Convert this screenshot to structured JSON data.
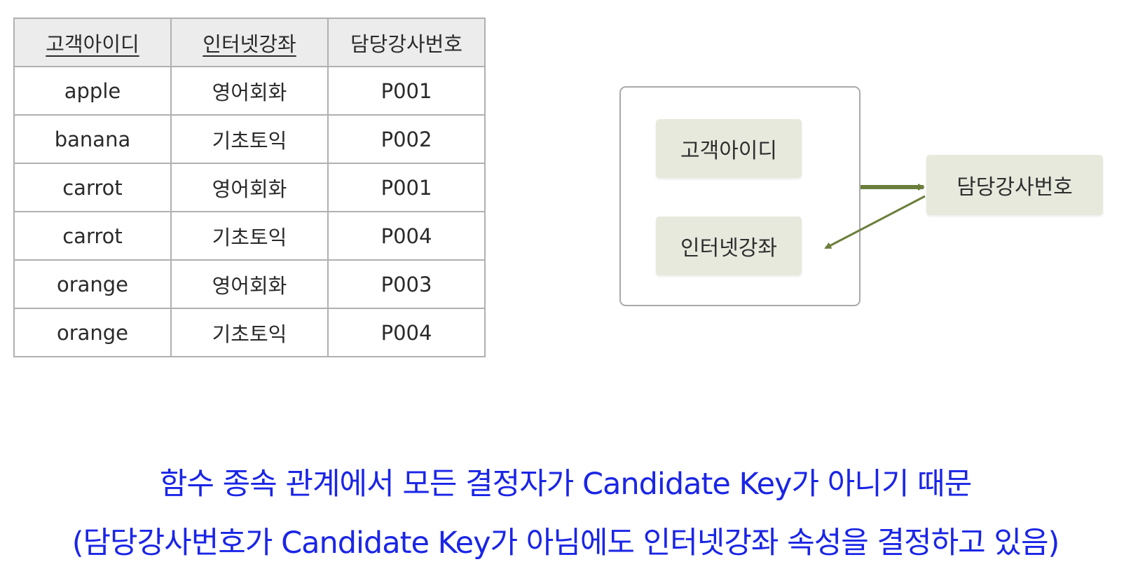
{
  "table": {
    "headers": [
      {
        "label": "고객아이디",
        "underline": true
      },
      {
        "label": "인터넷강좌",
        "underline": true
      },
      {
        "label": "담당강사번호",
        "underline": false
      }
    ],
    "rows": [
      [
        "apple",
        "영어회화",
        "P001"
      ],
      [
        "banana",
        "기초토익",
        "P002"
      ],
      [
        "carrot",
        "영어회화",
        "P001"
      ],
      [
        "carrot",
        "기초토익",
        "P004"
      ],
      [
        "orange",
        "영어회화",
        "P003"
      ],
      [
        "orange",
        "기초토익",
        "P004"
      ]
    ]
  },
  "diagram": {
    "nodes": {
      "customer_id": "고객아이디",
      "internet_course": "인터넷강좌",
      "instructor_no": "담당강사번호"
    },
    "arrow_color": "#6b7f3c",
    "node_fill": "#e6e9dc"
  },
  "caption": {
    "line1": "함수 종속 관계에서 모든 결정자가 Candidate Key가 아니기 때문",
    "line2": "(담당강사번호가 Candidate Key가 아님에도 인터넷강좌 속성을 결정하고 있음)",
    "color": "#1a25e6"
  }
}
